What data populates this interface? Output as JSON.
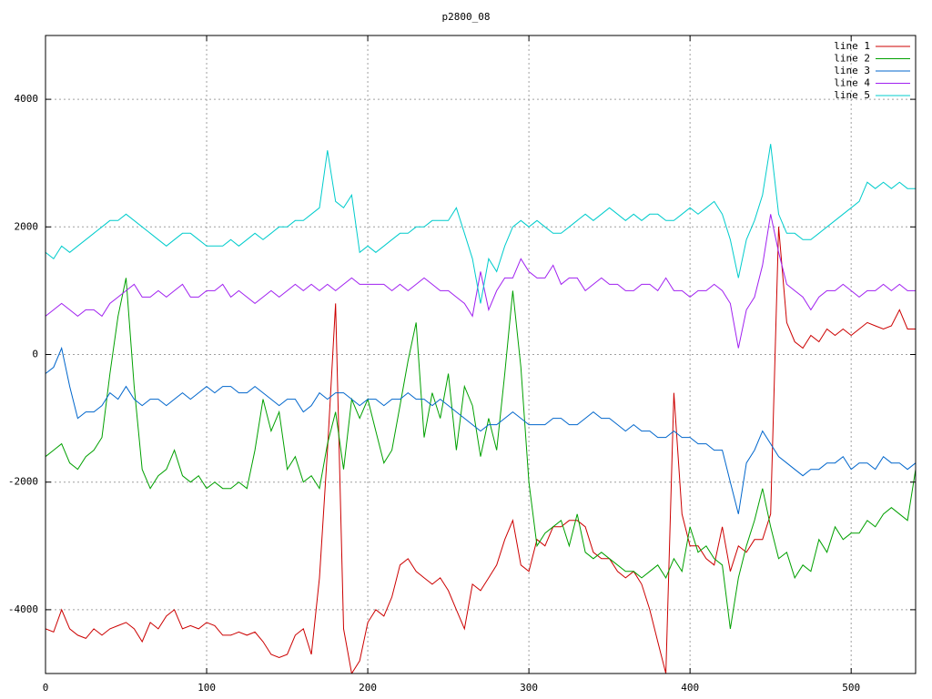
{
  "chart_data": {
    "type": "line",
    "title": "p2800_08",
    "xlim": [
      0,
      540
    ],
    "ylim": [
      -5000,
      5000
    ],
    "xticks": [
      0,
      100,
      200,
      300,
      400,
      500
    ],
    "yticks": [
      -4000,
      -2000,
      0,
      2000,
      4000
    ],
    "grid": true,
    "legend": "top-right",
    "x": [
      0,
      5,
      10,
      15,
      20,
      25,
      30,
      35,
      40,
      45,
      50,
      55,
      60,
      65,
      70,
      75,
      80,
      85,
      90,
      95,
      100,
      105,
      110,
      115,
      120,
      125,
      130,
      135,
      140,
      145,
      150,
      155,
      160,
      165,
      170,
      175,
      180,
      185,
      190,
      195,
      200,
      205,
      210,
      215,
      220,
      225,
      230,
      235,
      240,
      245,
      250,
      255,
      260,
      265,
      270,
      275,
      280,
      285,
      290,
      295,
      300,
      305,
      310,
      315,
      320,
      325,
      330,
      335,
      340,
      345,
      350,
      355,
      360,
      365,
      370,
      375,
      380,
      385,
      390,
      395,
      400,
      405,
      410,
      415,
      420,
      425,
      430,
      435,
      440,
      445,
      450,
      455,
      460,
      465,
      470,
      475,
      480,
      485,
      490,
      495,
      500,
      505,
      510,
      515,
      520,
      525,
      530,
      535,
      540
    ],
    "series": [
      {
        "name": "line 1",
        "color": "#cc0000",
        "values": [
          -4300,
          -4350,
          -4000,
          -4300,
          -4400,
          -4450,
          -4300,
          -4400,
          -4300,
          -4250,
          -4200,
          -4300,
          -4500,
          -4200,
          -4300,
          -4100,
          -4000,
          -4300,
          -4250,
          -4300,
          -4200,
          -4250,
          -4400,
          -4400,
          -4350,
          -4400,
          -4350,
          -4500,
          -4700,
          -4750,
          -4700,
          -4400,
          -4300,
          -4700,
          -3500,
          -1500,
          800,
          -4300,
          -5000,
          -4800,
          -4200,
          -4000,
          -4100,
          -3800,
          -3300,
          -3200,
          -3400,
          -3500,
          -3600,
          -3500,
          -3700,
          -4000,
          -4300,
          -3600,
          -3700,
          -3500,
          -3300,
          -2900,
          -2600,
          -3300,
          -3400,
          -2900,
          -3000,
          -2700,
          -2700,
          -2600,
          -2600,
          -2700,
          -3100,
          -3200,
          -3200,
          -3400,
          -3500,
          -3400,
          -3600,
          -4000,
          -4500,
          -5000,
          -600,
          -2500,
          -3000,
          -3000,
          -3200,
          -3300,
          -2700,
          -3400,
          -3000,
          -3100,
          -2900,
          -2900,
          -2500,
          2000,
          500,
          200,
          100,
          300,
          200,
          400,
          300,
          400,
          300,
          400,
          500,
          450,
          400,
          450,
          700,
          400,
          400
        ]
      },
      {
        "name": "line 2",
        "color": "#00a000",
        "values": [
          -1600,
          -1500,
          -1400,
          -1700,
          -1800,
          -1600,
          -1500,
          -1300,
          -300,
          600,
          1200,
          -500,
          -1800,
          -2100,
          -1900,
          -1800,
          -1500,
          -1900,
          -2000,
          -1900,
          -2100,
          -2000,
          -2100,
          -2100,
          -2000,
          -2100,
          -1500,
          -700,
          -1200,
          -900,
          -1800,
          -1600,
          -2000,
          -1900,
          -2100,
          -1400,
          -900,
          -1800,
          -700,
          -1000,
          -700,
          -1200,
          -1700,
          -1500,
          -800,
          -100,
          500,
          -1300,
          -600,
          -1000,
          -300,
          -1500,
          -500,
          -800,
          -1600,
          -1000,
          -1500,
          -300,
          1000,
          -200,
          -2000,
          -3000,
          -2800,
          -2700,
          -2600,
          -3000,
          -2500,
          -3100,
          -3200,
          -3100,
          -3200,
          -3300,
          -3400,
          -3400,
          -3500,
          -3400,
          -3300,
          -3500,
          -3200,
          -3400,
          -2700,
          -3100,
          -3000,
          -3200,
          -3300,
          -4300,
          -3500,
          -3000,
          -2600,
          -2100,
          -2700,
          -3200,
          -3100,
          -3500,
          -3300,
          -3400,
          -2900,
          -3100,
          -2700,
          -2900,
          -2800,
          -2800,
          -2600,
          -2700,
          -2500,
          -2400,
          -2500,
          -2600,
          -1800
        ]
      },
      {
        "name": "line 3",
        "color": "#0066cc",
        "values": [
          -300,
          -200,
          100,
          -500,
          -1000,
          -900,
          -900,
          -800,
          -600,
          -700,
          -500,
          -700,
          -800,
          -700,
          -700,
          -800,
          -700,
          -600,
          -700,
          -600,
          -500,
          -600,
          -500,
          -500,
          -600,
          -600,
          -500,
          -600,
          -700,
          -800,
          -700,
          -700,
          -900,
          -800,
          -600,
          -700,
          -600,
          -600,
          -700,
          -800,
          -700,
          -700,
          -800,
          -700,
          -700,
          -600,
          -700,
          -700,
          -800,
          -700,
          -800,
          -900,
          -1000,
          -1100,
          -1200,
          -1100,
          -1100,
          -1000,
          -900,
          -1000,
          -1100,
          -1100,
          -1100,
          -1000,
          -1000,
          -1100,
          -1100,
          -1000,
          -900,
          -1000,
          -1000,
          -1100,
          -1200,
          -1100,
          -1200,
          -1200,
          -1300,
          -1300,
          -1200,
          -1300,
          -1300,
          -1400,
          -1400,
          -1500,
          -1500,
          -2000,
          -2500,
          -1700,
          -1500,
          -1200,
          -1400,
          -1600,
          -1700,
          -1800,
          -1900,
          -1800,
          -1800,
          -1700,
          -1700,
          -1600,
          -1800,
          -1700,
          -1700,
          -1800,
          -1600,
          -1700,
          -1700,
          -1800,
          -1700
        ]
      },
      {
        "name": "line 4",
        "color": "#a020f0",
        "values": [
          600,
          700,
          800,
          700,
          600,
          700,
          700,
          600,
          800,
          900,
          1000,
          1100,
          900,
          900,
          1000,
          900,
          1000,
          1100,
          900,
          900,
          1000,
          1000,
          1100,
          900,
          1000,
          900,
          800,
          900,
          1000,
          900,
          1000,
          1100,
          1000,
          1100,
          1000,
          1100,
          1000,
          1100,
          1200,
          1100,
          1100,
          1100,
          1100,
          1000,
          1100,
          1000,
          1100,
          1200,
          1100,
          1000,
          1000,
          900,
          800,
          600,
          1300,
          700,
          1000,
          1200,
          1200,
          1500,
          1300,
          1200,
          1200,
          1400,
          1100,
          1200,
          1200,
          1000,
          1100,
          1200,
          1100,
          1100,
          1000,
          1000,
          1100,
          1100,
          1000,
          1200,
          1000,
          1000,
          900,
          1000,
          1000,
          1100,
          1000,
          800,
          100,
          700,
          900,
          1400,
          2200,
          1600,
          1100,
          1000,
          900,
          700,
          900,
          1000,
          1000,
          1100,
          1000,
          900,
          1000,
          1000,
          1100,
          1000,
          1100,
          1000,
          1000
        ]
      },
      {
        "name": "line 5",
        "color": "#00cccc",
        "values": [
          1600,
          1500,
          1700,
          1600,
          1700,
          1800,
          1900,
          2000,
          2100,
          2100,
          2200,
          2100,
          2000,
          1900,
          1800,
          1700,
          1800,
          1900,
          1900,
          1800,
          1700,
          1700,
          1700,
          1800,
          1700,
          1800,
          1900,
          1800,
          1900,
          2000,
          2000,
          2100,
          2100,
          2200,
          2300,
          3200,
          2400,
          2300,
          2500,
          1600,
          1700,
          1600,
          1700,
          1800,
          1900,
          1900,
          2000,
          2000,
          2100,
          2100,
          2100,
          2300,
          1900,
          1500,
          800,
          1500,
          1300,
          1700,
          2000,
          2100,
          2000,
          2100,
          2000,
          1900,
          1900,
          2000,
          2100,
          2200,
          2100,
          2200,
          2300,
          2200,
          2100,
          2200,
          2100,
          2200,
          2200,
          2100,
          2100,
          2200,
          2300,
          2200,
          2300,
          2400,
          2200,
          1800,
          1200,
          1800,
          2100,
          2500,
          3300,
          2200,
          1900,
          1900,
          1800,
          1800,
          1900,
          2000,
          2100,
          2200,
          2300,
          2400,
          2700,
          2600,
          2700,
          2600,
          2700,
          2600,
          2600
        ]
      }
    ]
  }
}
